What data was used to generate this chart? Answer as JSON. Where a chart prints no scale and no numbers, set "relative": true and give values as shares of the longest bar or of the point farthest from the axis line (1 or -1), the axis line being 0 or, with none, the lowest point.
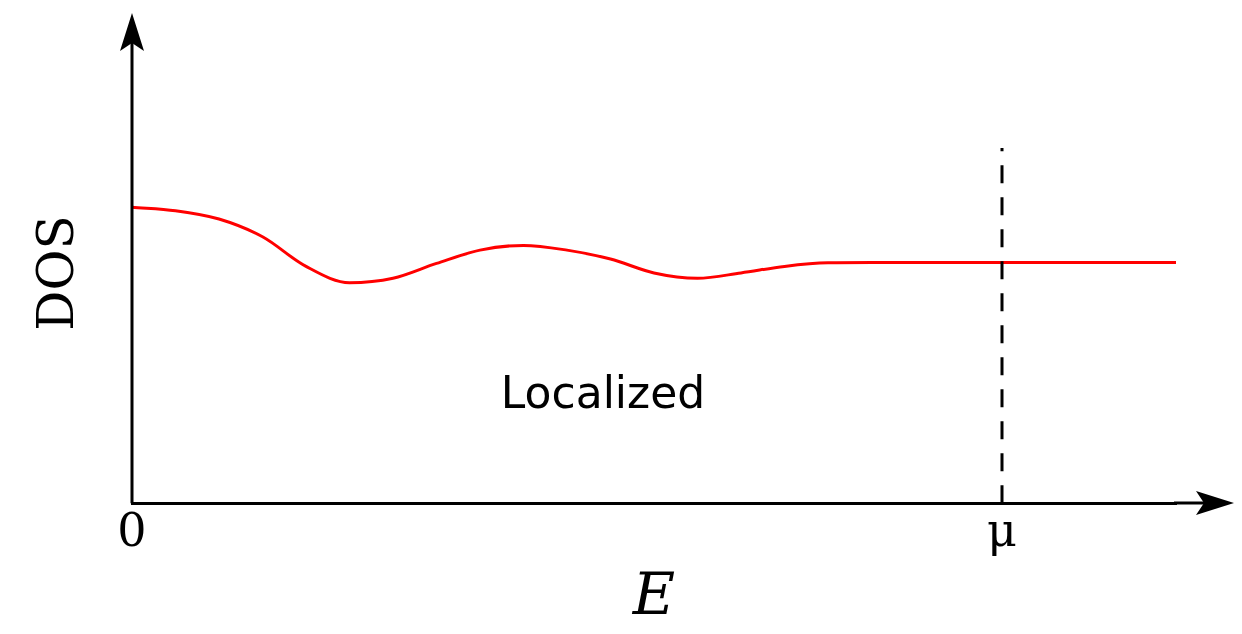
{
  "chart_data": {
    "type": "line",
    "relative": true,
    "xlabel": "E",
    "ylabel": "DOS",
    "annotations": [
      "Localized"
    ],
    "categories": [
      "0",
      null,
      null,
      null,
      null,
      null,
      null,
      null,
      null,
      null,
      null,
      null,
      null,
      null,
      null,
      null,
      null,
      null,
      null,
      null,
      "μ",
      null,
      null,
      null,
      null
    ],
    "series": [
      {
        "color": "#ff0000",
        "values": [
          1.0,
          0.988,
          0.96,
          0.9,
          0.8,
          0.745,
          0.76,
          0.81,
          0.855,
          0.871,
          0.855,
          0.825,
          0.778,
          0.76,
          0.778,
          0.8,
          0.812,
          0.813,
          0.813,
          0.813,
          0.813,
          0.813,
          0.813,
          0.813,
          0.813
        ]
      }
    ],
    "ref_lines": [
      {
        "axis": "x",
        "value": "μ",
        "color": "#000000",
        "line_style": "dashed"
      }
    ],
    "grid": false,
    "legend": false,
    "marker": "none",
    "line_style": "solid"
  }
}
